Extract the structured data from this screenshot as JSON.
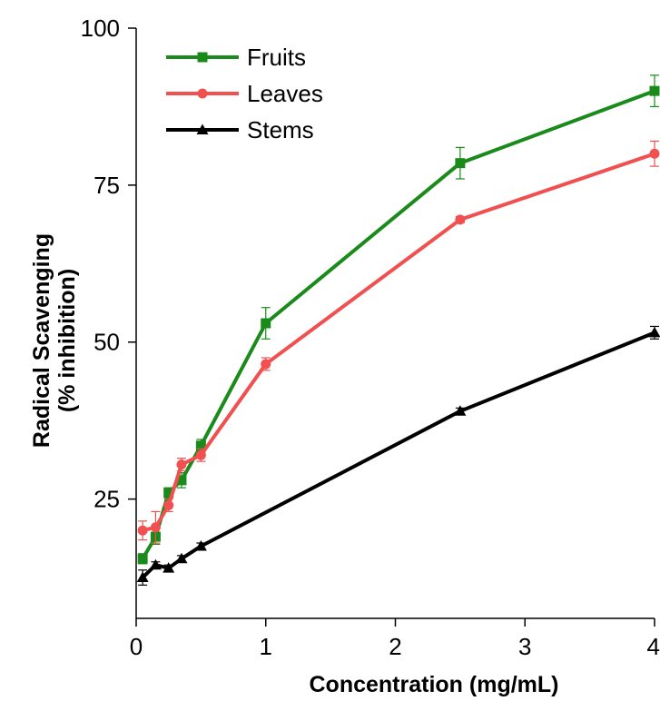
{
  "chart_data": {
    "type": "line",
    "title": "",
    "xlabel": "Concentration (mg/mL)",
    "ylabel": [
      "Radical Scavenging",
      "(% inhibition)"
    ],
    "xlim": [
      0,
      4
    ],
    "ylim": [
      6,
      100
    ],
    "xticks": [
      0,
      1,
      2,
      3,
      4
    ],
    "xtick_labels": [
      "0",
      "1",
      "2",
      "3",
      "4"
    ],
    "yticks": [
      25,
      50,
      75,
      100
    ],
    "ytick_labels": [
      "25",
      "50",
      "75",
      "100"
    ],
    "grid": false,
    "legend_position": "top-left",
    "x": [
      0.05,
      0.15,
      0.25,
      0.35,
      0.5,
      1,
      2.5,
      4
    ],
    "series": [
      {
        "name": "Fruits",
        "color": "#1a8a1a",
        "marker": "square",
        "values": [
          15.5,
          19,
          26,
          28,
          33.5,
          53,
          78.5,
          90
        ],
        "errors": [
          0.8,
          1.2,
          0.8,
          1.2,
          1,
          2.5,
          2.5,
          2.5
        ]
      },
      {
        "name": "Leaves",
        "color": "#f05050",
        "marker": "circle",
        "values": [
          20,
          20.5,
          24,
          30.5,
          32,
          46.5,
          69.5,
          80
        ],
        "errors": [
          1.5,
          2.5,
          1,
          1,
          1,
          1,
          0.5,
          2
        ]
      },
      {
        "name": "Stems",
        "color": "#000000",
        "marker": "triangle",
        "values": [
          12.5,
          14.5,
          14,
          15.5,
          17.5,
          null,
          39,
          51.5
        ],
        "errors": [
          1.2,
          0.5,
          0.5,
          0.5,
          0.5,
          null,
          0.5,
          1
        ]
      }
    ]
  }
}
